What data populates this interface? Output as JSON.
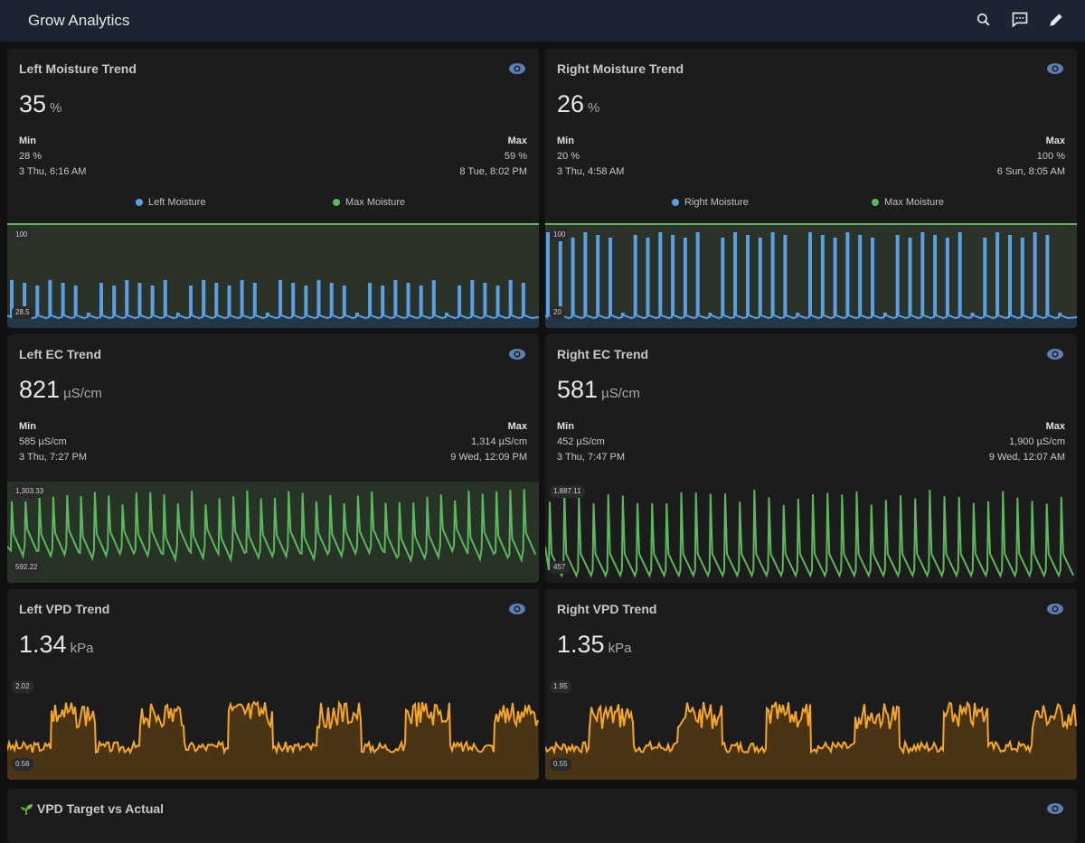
{
  "app": {
    "title": "Grow Analytics"
  },
  "toolbar": {
    "icons": [
      "search-icon",
      "chat-icon",
      "pencil-icon"
    ]
  },
  "cards": {
    "left_moisture": {
      "title": "Left Moisture Trend",
      "value": "35",
      "unit": "%",
      "min_label": "Min",
      "min_value": "28 %",
      "min_time": "3 Thu, 6:16 AM",
      "max_label": "Max",
      "max_value": "59 %",
      "max_time": "8 Tue, 8:02 PM",
      "legend": [
        "Left Moisture",
        "Max Moisture"
      ],
      "axis_top": "100",
      "axis_bottom": "28.5"
    },
    "right_moisture": {
      "title": "Right Moisture Trend",
      "value": "26",
      "unit": "%",
      "min_label": "Min",
      "min_value": "20 %",
      "min_time": "3 Thu, 4:58 AM",
      "max_label": "Max",
      "max_value": "100 %",
      "max_time": "6 Sun, 8:05 AM",
      "legend": [
        "Right Moisture",
        "Max Moisture"
      ],
      "axis_top": "100",
      "axis_bottom": "20"
    },
    "left_ec": {
      "title": "Left EC Trend",
      "value": "821",
      "unit": "µS/cm",
      "min_label": "Min",
      "min_value": "585 µS/cm",
      "min_time": "3 Thu, 7:27 PM",
      "max_label": "Max",
      "max_value": "1,314 µS/cm",
      "max_time": "9 Wed, 12:09 PM",
      "axis_top": "1,303.33",
      "axis_bottom": "592.22"
    },
    "right_ec": {
      "title": "Right EC Trend",
      "value": "581",
      "unit": "µS/cm",
      "min_label": "Min",
      "min_value": "452 µS/cm",
      "min_time": "3 Thu, 7:47 PM",
      "max_label": "Max",
      "max_value": "1,900 µS/cm",
      "max_time": "9 Wed, 12:07 AM",
      "axis_top": "1,887.11",
      "axis_bottom": "457"
    },
    "left_vpd": {
      "title": "Left VPD Trend",
      "value": "1.34",
      "unit": "kPa",
      "axis_top": "2.02",
      "axis_bottom": "0.56"
    },
    "right_vpd": {
      "title": "Right VPD Trend",
      "value": "1.35",
      "unit": "kPa",
      "axis_top": "1.95",
      "axis_bottom": "0.55"
    },
    "vpd_target": {
      "title": "VPD Target vs Actual",
      "icon": "sprout-icon"
    }
  },
  "colors": {
    "moisture": "#5aa0e6",
    "max_moisture": "#5cb85c",
    "ec": "#5cb85c",
    "vpd": "#f5a623",
    "eye": "#5b7fb3"
  }
}
